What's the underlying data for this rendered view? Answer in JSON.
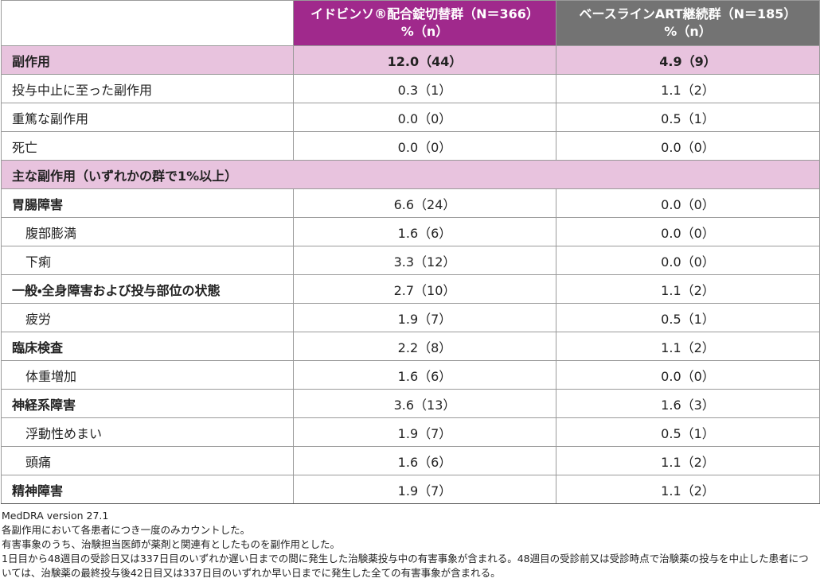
{
  "table": {
    "headers": [
      "",
      "イドビンソ®配合錠切替群（N＝366）",
      "ベースラインART継続群（N＝185）"
    ],
    "subheaders": [
      "%（n）",
      "%（n）"
    ],
    "rows": [
      [
        "副作用",
        "12.0（44）",
        "4.9（9）"
      ],
      [
        "投与中止に至った副作用",
        "0.3（1）",
        "1.1（2）"
      ],
      [
        "重篤な副作用",
        "0.0（0）",
        "0.5（1）"
      ],
      [
        "死亡",
        "0.0（0）",
        "0.0（0）"
      ],
      [
        "主な副作用（いずれかの群で1%以上）"
      ],
      [
        "胃腸障害",
        "6.6（24）",
        "0.0（0）"
      ],
      [
        "腹部膨満",
        "1.6（6）",
        "0.0（0）"
      ],
      [
        "下痢",
        "3.3（12）",
        "0.0（0）"
      ],
      [
        "一般・全身障害および投与部位の状態",
        "2.7（10）",
        "1.1（2）"
      ],
      [
        "疲労",
        "1.9（7）",
        "0.5（1）"
      ],
      [
        "臨床検査",
        "2.2（8）",
        "1.1（2）"
      ],
      [
        "体重増加",
        "1.6（6）",
        "0.0（0）"
      ],
      [
        "神経系障害",
        "3.6（13）",
        "1.6（3）"
      ],
      [
        "浮動性めまい",
        "1.9（7）",
        "0.5（1）"
      ],
      [
        "頭痛",
        "1.6（6）",
        "1.1（2）"
      ],
      [
        "精神障害",
        "1.9（7）",
        "1.1（2）"
      ]
    ]
  },
  "footnotes": [
    "MedDRA version 27.1",
    "各副作用において各患者につき一度のみカウントした。",
    "有害事象のうち、治験担当医師が薬剤と関連有としたものを副作用とした。",
    "1日目から48週目の受診日又は337日目のいずれか遅い日までの間に発生した治験薬投与中の有害事象が含まれる。48週目の受診前又は受診時点で治験薬の投与を中止した患者については、治験薬の最終投与後42日目又は337日目のいずれか早い日までに発生した全ての有害事象が含まれる。"
  ]
}
